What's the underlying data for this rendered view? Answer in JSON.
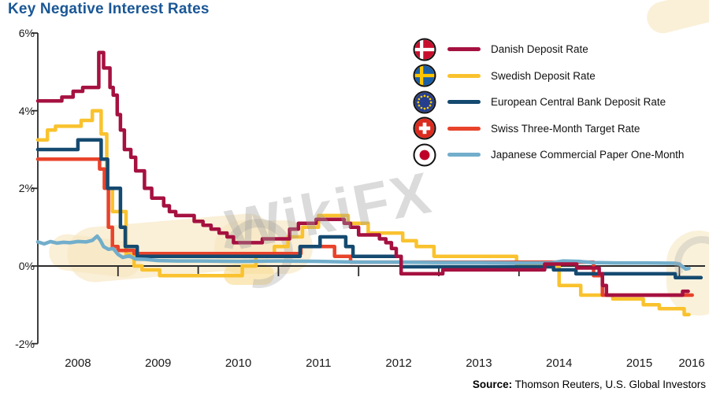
{
  "title": "Key Negative Interest Rates",
  "watermark": {
    "text": "WikiFX"
  },
  "source": {
    "label": "Source:",
    "text": "Thomson Reuters, U.S. Global Investors"
  },
  "legend": [
    {
      "id": "danish",
      "flag": "denmark-flag",
      "label": "Danish Deposit Rate",
      "color": "#A51140"
    },
    {
      "id": "swedish",
      "flag": "sweden-flag",
      "label": "Swedish Deposit Rate",
      "color": "#F9C22E"
    },
    {
      "id": "ecb",
      "flag": "eu-flag",
      "label": "European Central Bank Deposit Rate",
      "color": "#154A70"
    },
    {
      "id": "swiss",
      "flag": "switzerland-flag",
      "label": "Swiss Three-Month Target Rate",
      "color": "#E8432B"
    },
    {
      "id": "japanese",
      "flag": "japan-flag",
      "label": "Japanese Commercial Paper One-Month",
      "color": "#72AECB"
    }
  ],
  "chart_data": {
    "type": "line",
    "title": "Key Negative Interest Rates",
    "x_axis": {
      "range": [
        2008.0,
        2016.32
      ],
      "boundary_ticks": [
        2009,
        2010,
        2011,
        2012,
        2013,
        2014,
        2015,
        2016
      ],
      "labels": [
        "2008",
        "2009",
        "2010",
        "2011",
        "2012",
        "2013",
        "2014",
        "2015",
        "2016"
      ],
      "label_years": [
        2008,
        2009,
        2010,
        2011,
        2012,
        2013,
        2014,
        2015,
        2016
      ]
    },
    "y_axis": {
      "range": [
        -2,
        6
      ],
      "tick_values": [
        6,
        4,
        2,
        0,
        -2
      ],
      "tick_labels": [
        "6%",
        "4%",
        "2%",
        "0%",
        "-2%"
      ],
      "unit": "percent"
    },
    "grid": false,
    "legend_position": "top-right",
    "series": [
      {
        "name": "Swedish Deposit Rate",
        "color": "#F9C22E",
        "interpolation": "step",
        "points": [
          [
            2008.0,
            3.25
          ],
          [
            2008.12,
            3.5
          ],
          [
            2008.22,
            3.6
          ],
          [
            2008.54,
            3.75
          ],
          [
            2008.68,
            4.0
          ],
          [
            2008.79,
            3.4
          ],
          [
            2008.86,
            2.0
          ],
          [
            2008.93,
            1.4
          ],
          [
            2009.1,
            0.3
          ],
          [
            2009.2,
            0.0
          ],
          [
            2009.3,
            -0.1
          ],
          [
            2009.52,
            -0.25
          ],
          [
            2010.55,
            0.0
          ],
          [
            2010.72,
            0.25
          ],
          [
            2010.95,
            0.5
          ],
          [
            2011.12,
            0.75
          ],
          [
            2011.3,
            1.0
          ],
          [
            2011.5,
            1.3
          ],
          [
            2011.87,
            1.1
          ],
          [
            2012.12,
            0.85
          ],
          [
            2012.55,
            0.65
          ],
          [
            2012.72,
            0.5
          ],
          [
            2012.94,
            0.25
          ],
          [
            2013.97,
            0.0
          ],
          [
            2014.5,
            -0.5
          ],
          [
            2014.77,
            -0.75
          ],
          [
            2015.17,
            -0.85
          ],
          [
            2015.55,
            -1.0
          ],
          [
            2015.75,
            -1.1
          ],
          [
            2016.06,
            -1.25
          ]
        ],
        "end_x": 2016.12
      },
      {
        "name": "Swiss Three-Month Target Rate",
        "color": "#E8432B",
        "interpolation": "step",
        "points": [
          [
            2008.0,
            2.75
          ],
          [
            2008.77,
            2.5
          ],
          [
            2008.83,
            2.0
          ],
          [
            2008.88,
            1.0
          ],
          [
            2008.93,
            0.5
          ],
          [
            2009.0,
            0.4
          ],
          [
            2009.2,
            0.32
          ],
          [
            2011.28,
            0.5
          ],
          [
            2011.7,
            0.25
          ],
          [
            2011.9,
            0.1
          ],
          [
            2014.93,
            -0.25
          ],
          [
            2015.04,
            -0.75
          ]
        ],
        "end_x": 2016.16
      },
      {
        "name": "European Central Bank Deposit Rate",
        "color": "#154A70",
        "interpolation": "step",
        "points": [
          [
            2008.0,
            3.0
          ],
          [
            2008.5,
            3.25
          ],
          [
            2008.79,
            2.75
          ],
          [
            2008.87,
            2.0
          ],
          [
            2009.03,
            1.0
          ],
          [
            2009.09,
            0.5
          ],
          [
            2009.24,
            0.25
          ],
          [
            2011.27,
            0.5
          ],
          [
            2011.52,
            0.75
          ],
          [
            2011.84,
            0.5
          ],
          [
            2011.93,
            0.25
          ],
          [
            2012.53,
            -0.02
          ],
          [
            2014.43,
            -0.1
          ],
          [
            2014.71,
            -0.2
          ],
          [
            2015.95,
            -0.3
          ]
        ],
        "end_x": 2016.27
      },
      {
        "name": "Japanese Commercial Paper One-Month",
        "color": "#72AECB",
        "interpolation": "linear",
        "points": [
          [
            2008.0,
            0.62
          ],
          [
            2008.08,
            0.57
          ],
          [
            2008.16,
            0.63
          ],
          [
            2008.24,
            0.59
          ],
          [
            2008.32,
            0.61
          ],
          [
            2008.4,
            0.6
          ],
          [
            2008.5,
            0.63
          ],
          [
            2008.6,
            0.62
          ],
          [
            2008.68,
            0.66
          ],
          [
            2008.74,
            0.77
          ],
          [
            2008.78,
            0.66
          ],
          [
            2008.82,
            0.5
          ],
          [
            2008.88,
            0.43
          ],
          [
            2008.94,
            0.45
          ],
          [
            2009.0,
            0.3
          ],
          [
            2009.06,
            0.22
          ],
          [
            2009.14,
            0.26
          ],
          [
            2009.22,
            0.18
          ],
          [
            2009.35,
            0.17
          ],
          [
            2009.5,
            0.14
          ],
          [
            2009.75,
            0.13
          ],
          [
            2010.0,
            0.13
          ],
          [
            2010.5,
            0.12
          ],
          [
            2011.0,
            0.13
          ],
          [
            2011.5,
            0.12
          ],
          [
            2012.0,
            0.1
          ],
          [
            2012.5,
            0.1
          ],
          [
            2013.0,
            0.09
          ],
          [
            2013.5,
            0.09
          ],
          [
            2014.0,
            0.08
          ],
          [
            2014.4,
            0.08
          ],
          [
            2014.55,
            0.13
          ],
          [
            2014.75,
            0.12
          ],
          [
            2014.9,
            0.09
          ],
          [
            2015.2,
            0.08
          ],
          [
            2015.6,
            0.08
          ],
          [
            2015.95,
            0.07
          ],
          [
            2016.0,
            0.05
          ],
          [
            2016.04,
            -0.02
          ],
          [
            2016.08,
            -0.08
          ],
          [
            2016.12,
            -0.06
          ]
        ],
        "end_x": 2016.12
      },
      {
        "name": "Danish Deposit Rate",
        "color": "#A51140",
        "interpolation": "step",
        "points": [
          [
            2008.0,
            4.25
          ],
          [
            2008.3,
            4.35
          ],
          [
            2008.44,
            4.5
          ],
          [
            2008.56,
            4.6
          ],
          [
            2008.76,
            5.5
          ],
          [
            2008.82,
            5.1
          ],
          [
            2008.9,
            4.6
          ],
          [
            2008.94,
            4.4
          ],
          [
            2008.99,
            3.9
          ],
          [
            2009.03,
            3.5
          ],
          [
            2009.08,
            3.0
          ],
          [
            2009.16,
            2.8
          ],
          [
            2009.22,
            2.45
          ],
          [
            2009.33,
            2.0
          ],
          [
            2009.42,
            1.75
          ],
          [
            2009.57,
            1.55
          ],
          [
            2009.64,
            1.4
          ],
          [
            2009.72,
            1.3
          ],
          [
            2009.95,
            1.15
          ],
          [
            2010.06,
            1.05
          ],
          [
            2010.16,
            0.95
          ],
          [
            2010.26,
            0.85
          ],
          [
            2010.36,
            0.75
          ],
          [
            2010.44,
            0.6
          ],
          [
            2010.8,
            0.7
          ],
          [
            2011.14,
            0.95
          ],
          [
            2011.25,
            1.1
          ],
          [
            2011.47,
            1.2
          ],
          [
            2011.82,
            1.1
          ],
          [
            2011.9,
            1.0
          ],
          [
            2012.0,
            0.8
          ],
          [
            2012.26,
            0.7
          ],
          [
            2012.34,
            0.6
          ],
          [
            2012.41,
            0.45
          ],
          [
            2012.47,
            0.25
          ],
          [
            2012.53,
            -0.2
          ],
          [
            2013.05,
            -0.1
          ],
          [
            2014.32,
            0.05
          ],
          [
            2014.72,
            -0.05
          ],
          [
            2015.0,
            -0.2
          ],
          [
            2015.04,
            -0.5
          ],
          [
            2015.09,
            -0.75
          ],
          [
            2016.04,
            -0.65
          ]
        ],
        "end_x": 2016.11
      }
    ]
  }
}
